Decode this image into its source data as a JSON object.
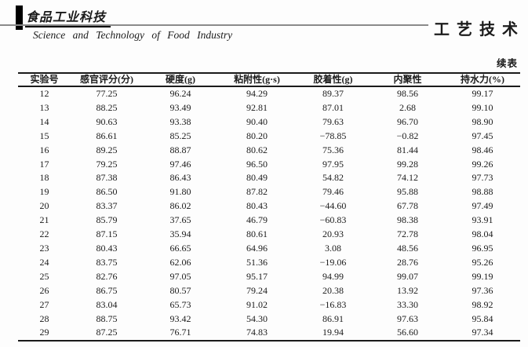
{
  "header": {
    "journal_name_cn": "食品工业科技",
    "journal_name_en": "Science  and  Technology  of  Food  Industry",
    "section_title": "工艺技术"
  },
  "table": {
    "continued_label": "续表",
    "columns": [
      "实验号",
      "感官评分(分)",
      "硬度(g)",
      "粘附性(g·s)",
      "胶着性(g)",
      "内聚性",
      "持水力(%)"
    ],
    "rows": [
      [
        "12",
        "77.25",
        "96.24",
        "94.29",
        "89.37",
        "98.56",
        "99.17"
      ],
      [
        "13",
        "88.25",
        "93.49",
        "92.81",
        "87.01",
        "2.68",
        "99.10"
      ],
      [
        "14",
        "90.63",
        "93.38",
        "90.40",
        "79.63",
        "96.70",
        "98.90"
      ],
      [
        "15",
        "86.61",
        "85.25",
        "80.20",
        "−78.85",
        "−0.82",
        "97.45"
      ],
      [
        "16",
        "89.25",
        "88.87",
        "80.62",
        "75.36",
        "81.44",
        "98.46"
      ],
      [
        "17",
        "79.25",
        "97.46",
        "96.50",
        "97.95",
        "99.28",
        "99.26"
      ],
      [
        "18",
        "87.38",
        "86.43",
        "80.49",
        "54.82",
        "74.12",
        "97.73"
      ],
      [
        "19",
        "86.50",
        "91.80",
        "87.82",
        "79.46",
        "95.88",
        "98.88"
      ],
      [
        "20",
        "83.37",
        "86.02",
        "80.43",
        "−44.60",
        "67.78",
        "97.49"
      ],
      [
        "21",
        "85.79",
        "37.65",
        "46.79",
        "−60.83",
        "98.38",
        "93.91"
      ],
      [
        "22",
        "87.15",
        "35.94",
        "80.61",
        "20.93",
        "72.78",
        "98.04"
      ],
      [
        "23",
        "80.43",
        "66.65",
        "64.96",
        "3.08",
        "48.56",
        "96.95"
      ],
      [
        "24",
        "83.75",
        "62.06",
        "51.36",
        "−19.06",
        "28.76",
        "95.26"
      ],
      [
        "25",
        "82.76",
        "97.05",
        "95.17",
        "94.99",
        "99.07",
        "99.19"
      ],
      [
        "26",
        "86.75",
        "80.57",
        "79.24",
        "20.38",
        "13.92",
        "97.36"
      ],
      [
        "27",
        "83.04",
        "65.73",
        "91.02",
        "−16.83",
        "33.30",
        "98.92"
      ],
      [
        "28",
        "88.75",
        "93.42",
        "54.30",
        "86.91",
        "97.63",
        "95.84"
      ],
      [
        "29",
        "87.25",
        "76.71",
        "74.83",
        "19.94",
        "56.60",
        "97.34"
      ]
    ]
  },
  "colors": {
    "ink": "#1b1b1b",
    "table_rule": "#1a1a1a",
    "header_divider": "#8a8a8a"
  }
}
